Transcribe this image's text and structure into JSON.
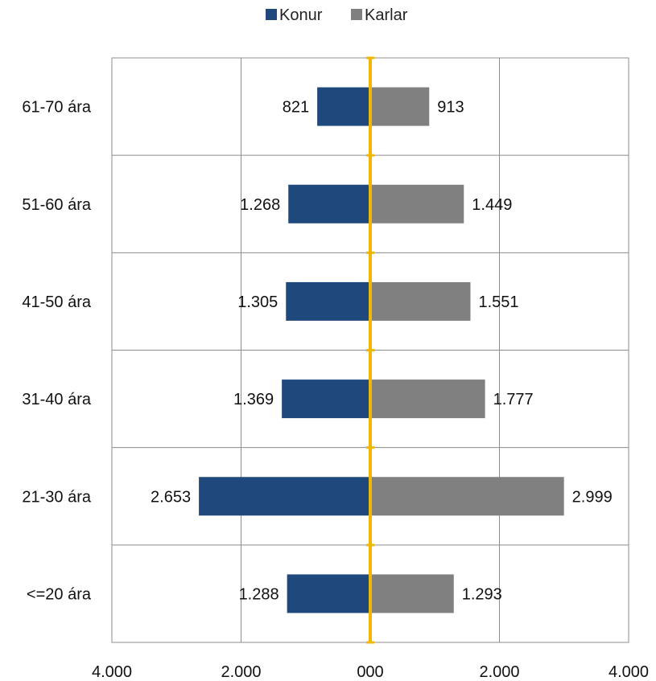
{
  "chart_data": {
    "type": "bar",
    "orientation": "horizontal",
    "layout": "diverging",
    "categories": [
      "61-70 ára",
      "51-60 ára",
      "41-50 ára",
      "31-40 ára",
      "21-30 ára",
      "<=20 ára"
    ],
    "series": [
      {
        "name": "Konur",
        "color": "#1f497d",
        "direction": "left",
        "values": [
          821,
          1268,
          1305,
          1369,
          2653,
          1288
        ],
        "labels": [
          "821",
          "1.268",
          "1.305",
          "1.369",
          "2.653",
          "1.288"
        ]
      },
      {
        "name": "Karlar",
        "color": "#808080",
        "direction": "right",
        "values": [
          913,
          1449,
          1551,
          1777,
          2999,
          1293
        ],
        "labels": [
          "913",
          "1.449",
          "1.551",
          "1.777",
          "2.999",
          "1.293"
        ]
      }
    ],
    "xlim": [
      -4000,
      4000
    ],
    "xticks": [
      -4000,
      -2000,
      0,
      2000,
      4000
    ],
    "xtick_labels": [
      "4.000",
      "2.000",
      "000",
      "2.000",
      "4.000"
    ],
    "grid": true,
    "legend": "top-center",
    "center_line_color": "#f2b705",
    "title": "",
    "xlabel": "",
    "ylabel": ""
  }
}
